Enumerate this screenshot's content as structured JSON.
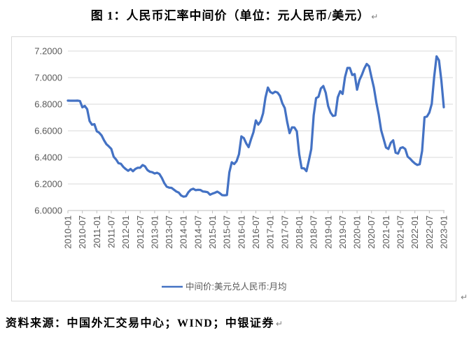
{
  "title": "图 1：人民币汇率中间价（单位：元人民币/美元）",
  "source": "资料来源：中国外汇交易中心；WIND；中银证券",
  "paragraph_mark": "↵",
  "colors": {
    "line": "#4472C4",
    "grid": "#D9D9D9",
    "axis": "#BFBFBF",
    "tick_label": "#595959",
    "frame_border": "#D9D9D9"
  },
  "chart_data": {
    "type": "line",
    "title": "图 1：人民币汇率中间价（单位：元人民币/美元）",
    "xlabel": "",
    "ylabel": "",
    "ylim": [
      6.0,
      7.2
    ],
    "ytick_step": 0.2,
    "ytick_labels": [
      "6.0000",
      "6.2000",
      "6.4000",
      "6.6000",
      "6.8000",
      "7.0000",
      "7.2000"
    ],
    "grid": "horizontal",
    "legend_position": "bottom",
    "x_start": "2010-01",
    "x_end": "2023-01",
    "x_frequency": "monthly",
    "xtick_labels": [
      "2010-01",
      "2010-07",
      "2011-01",
      "2011-07",
      "2012-01",
      "2012-07",
      "2013-01",
      "2013-07",
      "2014-01",
      "2014-07",
      "2015-01",
      "2015-07",
      "2016-01",
      "2016-07",
      "2017-01",
      "2017-07",
      "2018-01",
      "2018-07",
      "2019-01",
      "2019-07",
      "2020-01",
      "2020-07",
      "2021-01",
      "2021-07",
      "2022-01",
      "2022-07",
      "2023-01"
    ],
    "series": [
      {
        "name": "中间价:美元兑人民币:月均",
        "values": [
          6.827,
          6.8263,
          6.8263,
          6.826,
          6.8269,
          6.824,
          6.7768,
          6.7873,
          6.7625,
          6.6732,
          6.6457,
          6.6497,
          6.5964,
          6.5854,
          6.5645,
          6.5284,
          6.4988,
          6.4825,
          6.464,
          6.4049,
          6.384,
          6.356,
          6.3514,
          6.3281,
          6.3119,
          6.2988,
          6.3126,
          6.296,
          6.3126,
          6.3218,
          6.322,
          6.3422,
          6.3324,
          6.3045,
          6.292,
          6.2885,
          6.2787,
          6.2842,
          6.2745,
          6.2451,
          6.2065,
          6.1796,
          6.1721,
          6.1707,
          6.1571,
          6.1431,
          6.135,
          6.1128,
          6.1043,
          6.1075,
          6.1375,
          6.1563,
          6.164,
          6.1534,
          6.1561,
          6.1545,
          6.1434,
          6.1414,
          6.1377,
          6.119,
          6.1272,
          6.1335,
          6.1422,
          6.131,
          6.1156,
          6.1147,
          6.1166,
          6.2869,
          6.3632,
          6.3495,
          6.3712,
          6.4236,
          6.5577,
          6.5452,
          6.5055,
          6.4769,
          6.5362,
          6.5889,
          6.6779,
          6.6462,
          6.6712,
          6.7312,
          6.8508,
          6.9255,
          6.8918,
          6.8818,
          6.894,
          6.8876,
          6.8633,
          6.8066,
          6.7711,
          6.667,
          6.5823,
          6.6254,
          6.6248,
          6.5963,
          6.4233,
          6.3183,
          6.3174,
          6.2967,
          6.3765,
          6.4628,
          6.7164,
          6.8456,
          6.856,
          6.9191,
          6.9367,
          6.8862,
          6.7863,
          6.737,
          6.7119,
          6.7161,
          6.8519,
          6.8977,
          6.8775,
          7.0039,
          7.0729,
          7.073,
          7.0199,
          7.0266,
          6.909,
          6.982,
          7.0205,
          7.0683,
          7.1029,
          7.0852,
          7.0024,
          6.9234,
          6.813,
          6.7204,
          6.604,
          6.5403,
          6.4744,
          6.4633,
          6.5097,
          6.5281,
          6.4354,
          6.4283,
          6.4699,
          6.4758,
          6.463,
          6.4056,
          6.3903,
          6.3703,
          6.3541,
          6.3431,
          6.3482,
          6.4487,
          6.7023,
          6.7067,
          6.7375,
          6.8027,
          7.005,
          7.16,
          7.13,
          6.9765,
          6.7773
        ]
      }
    ]
  }
}
